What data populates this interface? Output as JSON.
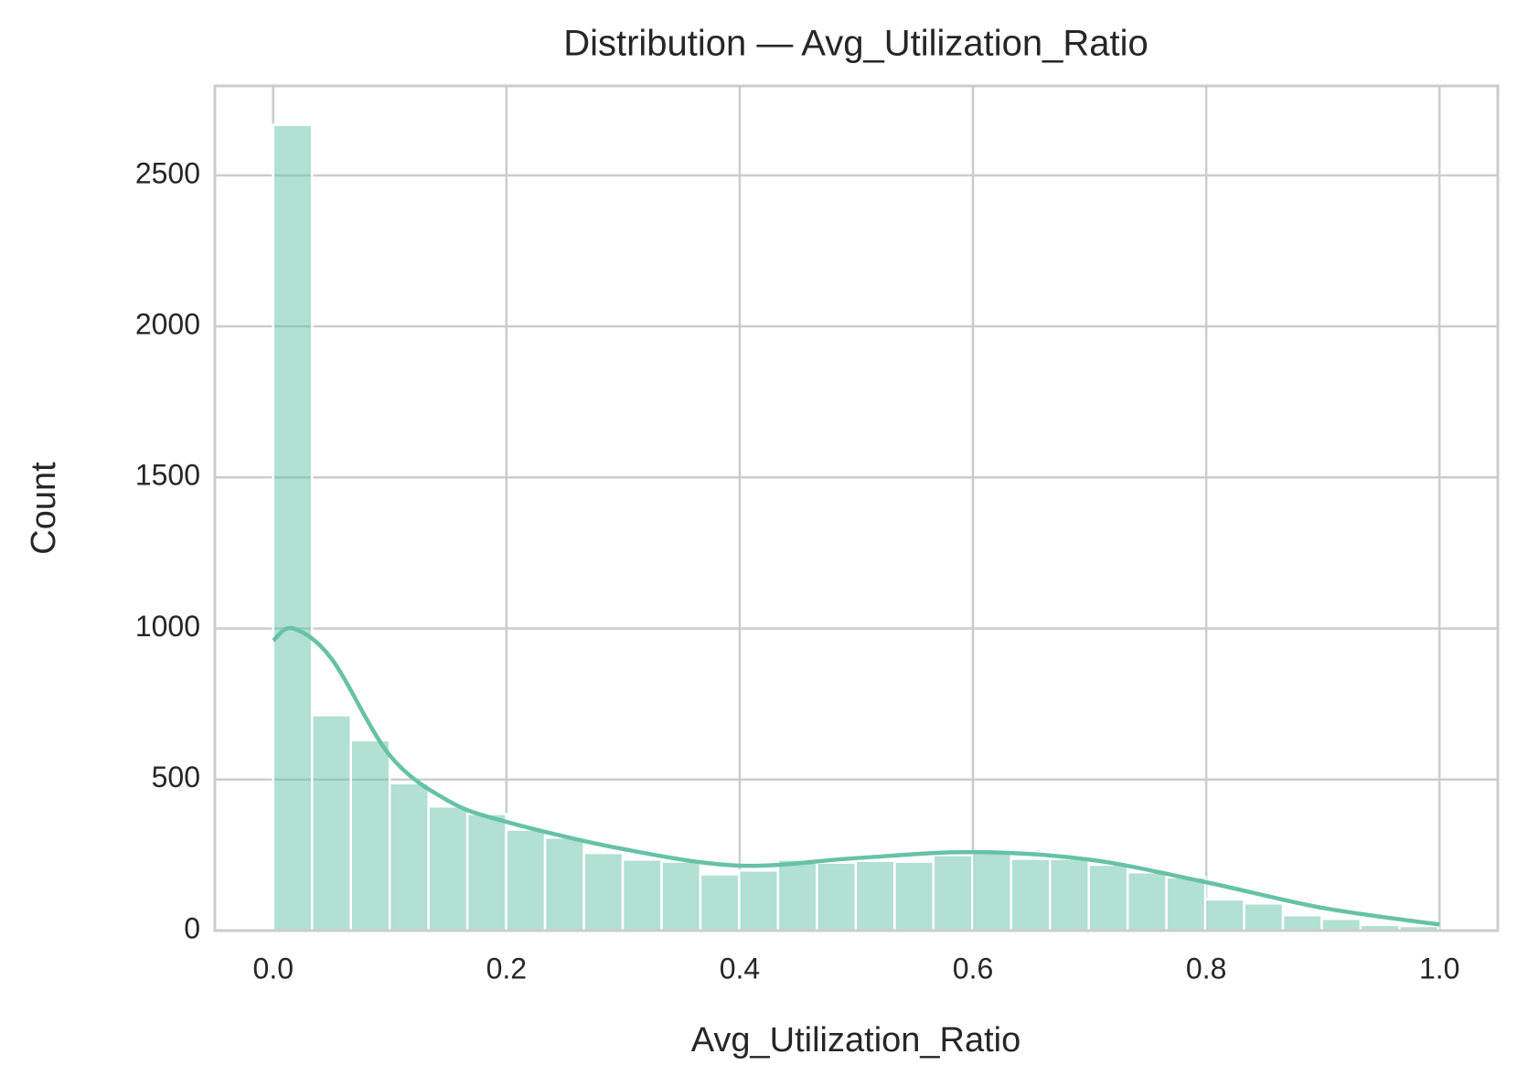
{
  "chart_data": {
    "type": "histogram",
    "title": "Distribution — Avg_Utilization_Ratio",
    "x_label": "Avg_Utilization_Ratio",
    "y_label": "Count",
    "color": "#66c2a5",
    "bar_opacity": 0.5,
    "grid": true,
    "bins": [
      0,
      0.0333,
      0.0666,
      0.0999,
      0.1332,
      0.1665,
      0.1998,
      0.2331,
      0.2664,
      0.2997,
      0.333,
      0.3663,
      0.3996,
      0.4329,
      0.4662,
      0.4995,
      0.5328,
      0.5661,
      0.5994,
      0.6327,
      0.666,
      0.6993,
      0.7326,
      0.7659,
      0.7992,
      0.8325,
      0.8658,
      0.8991,
      0.9324,
      0.9657,
      0.999
    ],
    "counts": [
      2667,
      713,
      630,
      488,
      411,
      386,
      334,
      308,
      257,
      235,
      228,
      186,
      199,
      235,
      225,
      231,
      228,
      250,
      257,
      238,
      238,
      218,
      193,
      177,
      103,
      90,
      51,
      39,
      19,
      15
    ],
    "kde": {
      "color": "#66c2a5",
      "x": [
        0,
        0.017,
        0.05,
        0.1,
        0.15,
        0.2,
        0.3,
        0.4,
        0.5,
        0.6,
        0.7,
        0.8,
        0.9,
        1.0
      ],
      "values": [
        960,
        1000,
        900,
        580,
        430,
        360,
        270,
        215,
        240,
        260,
        235,
        160,
        75,
        20
      ]
    },
    "xlim": [
      -0.05,
      1.05
    ],
    "ylim": [
      0,
      2796
    ],
    "xticks": [
      {
        "value": 0,
        "label": "0.0"
      },
      0.2,
      0.4,
      0.6,
      0.8,
      {
        "value": 1,
        "label": "1.0"
      }
    ],
    "yticks": [
      0,
      500,
      1000,
      1500,
      2000,
      2500
    ]
  }
}
